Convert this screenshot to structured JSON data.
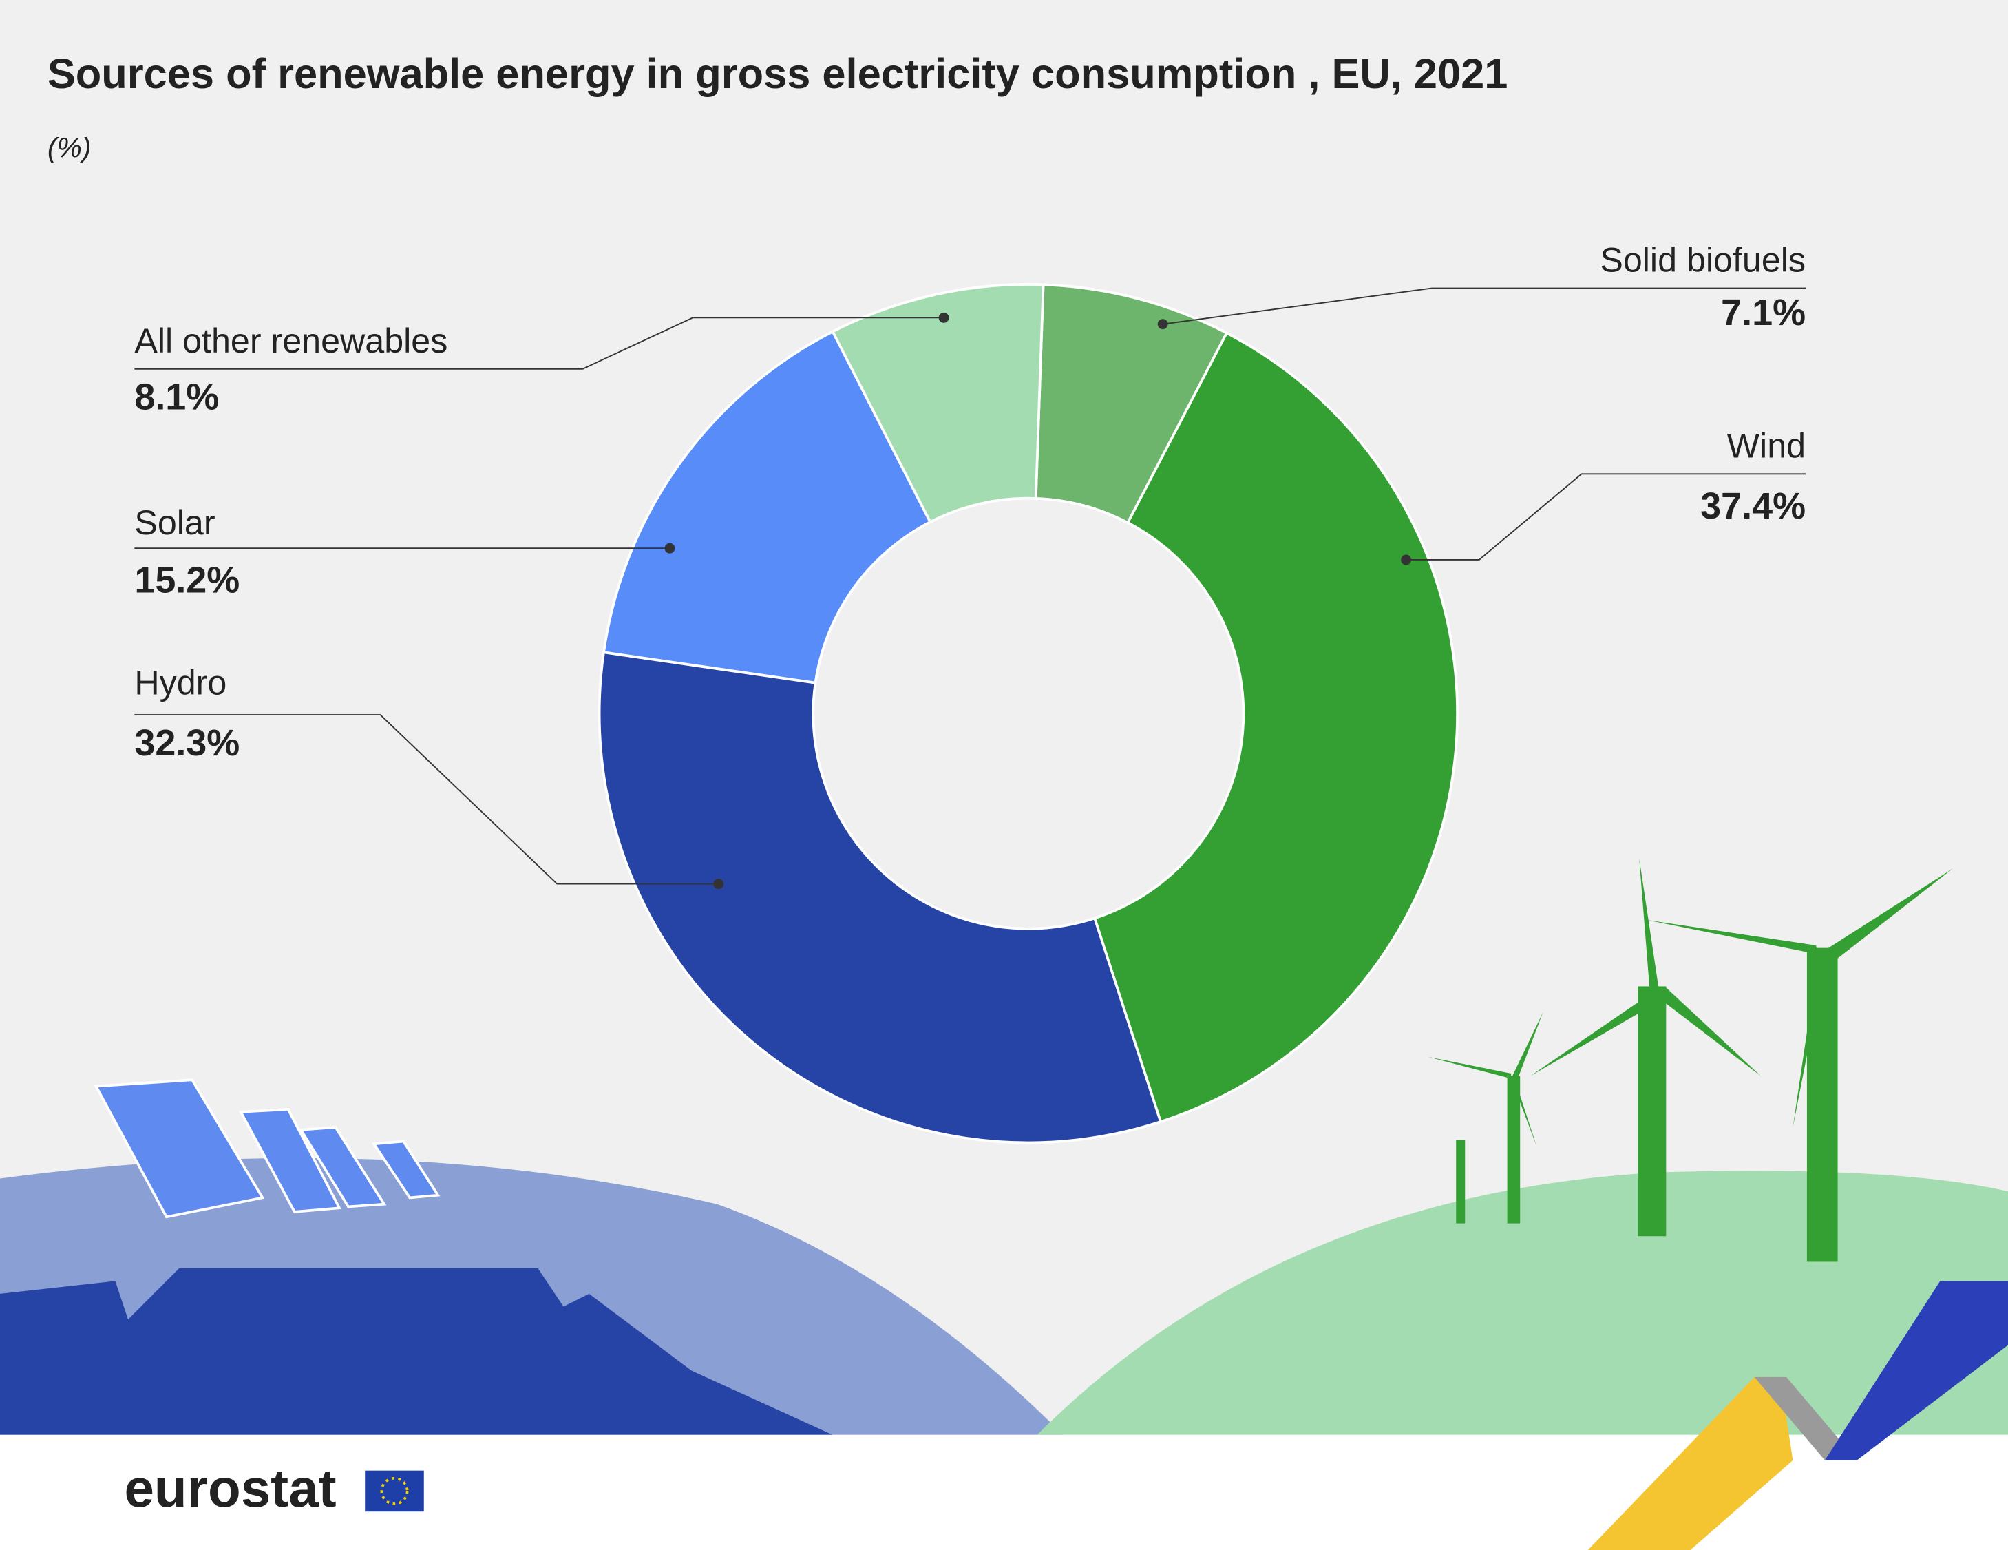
{
  "chart_data": {
    "type": "pie",
    "title": "Sources of renewable energy in gross electricity consumption , EU, 2021",
    "subtitle": "(%)",
    "categories": [
      "Solid biofuels",
      "Wind",
      "Hydro",
      "Solar",
      "All other renewables"
    ],
    "values": [
      7.1,
      37.4,
      32.3,
      15.2,
      8.1
    ],
    "value_labels": [
      "7.1%",
      "37.4%",
      "32.3%",
      "15.2%",
      "8.1%"
    ],
    "colors": [
      "#6db56d",
      "#34a033",
      "#2644a5",
      "#578cf9",
      "#a3dcb0"
    ],
    "donut": true
  },
  "logo": "eurostat"
}
